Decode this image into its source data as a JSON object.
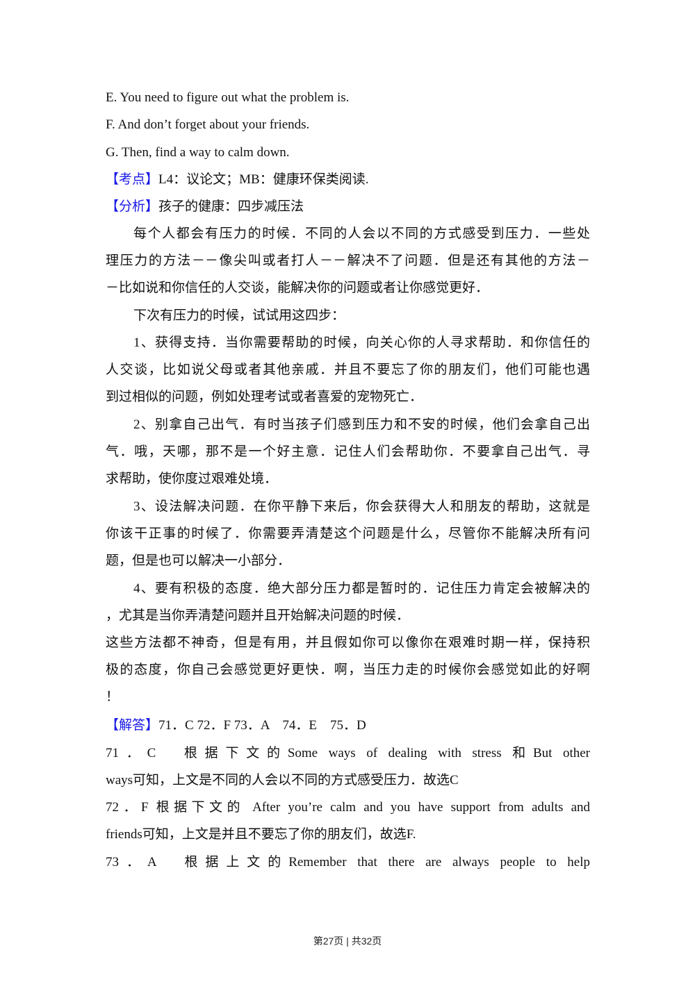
{
  "options": [
    "E. You need to figure out what the problem is.",
    "F. And don’t forget about your friends.",
    "G. Then, find a way to calm down."
  ],
  "kaodian": {
    "tag": "【考点】",
    "text": "L4：议论文；MB：健康环保类阅读."
  },
  "fenxi": {
    "tag": "【分析】",
    "text": "孩子的健康：四步减压法"
  },
  "analysis_lines": [
    "每个人都会有压力的时候．不同的人会以不同的方式感受到压力．一些处",
    "理压力的方法－－像尖叫或者打人－－解决不了问题．但是还有其他的方法－",
    "－比如说和你信任的人交谈，能解决你的问题或者让你感觉更好．",
    "下次有压力的时候，试试用这四步：",
    "1、获得支持．当你需要帮助的时候，向关心你的人寻求帮助．和你信任的",
    "人交谈，比如说父母或者其他亲戚．并且不要忘了你的朋友们，他们可能也遇",
    "到过相似的问题，例如处理考试或者喜爱的宠物死亡．",
    "2、别拿自己出气．有时当孩子们感到压力和不安的时候，他们会拿自己出",
    "气．哦，天哪，那不是一个好主意．记住人们会帮助你．不要拿自己出气．寻",
    "求帮助，使你度过艰难处境．",
    "3、设法解决问题．在你平静下来后，你会获得大人和朋友的帮助，这就是",
    "你该干正事的时候了．你需要弄清楚这个问题是什么，尽管你不能解决所有问",
    "题，但是也可以解决一小部分．",
    "4、要有积极的态度．绝大部分压力都是暂时的．记住压力肯定会被解决的",
    "，尤其是当你弄清楚问题并且开始解决问题的时候．",
    "这些方法都不神奇，但是有用，并且假如你可以像你在艰难时期一样，保持积",
    "极的态度，你自己会感觉更好更快．啊，当压力走的时候你会感觉如此的好啊",
    "！"
  ],
  "jieda": {
    "tag": "【解答】",
    "text": "71．C 72．F 73．A　74．E　75．D"
  },
  "explanations": [
    "71．C　根据下文的Some ways of dealing with stress 和But other",
    "ways可知，上文是不同的人会以不同的方式感受压力．故选C",
    "72．F 根据下文的 After you’re calm and you have support from adults and",
    "friends可知，上文是并且不要忘了你的朋友们，故选F.",
    "73．A　根据上文的Remember that there are always people to help"
  ],
  "footer": "第27页 | 共32页"
}
